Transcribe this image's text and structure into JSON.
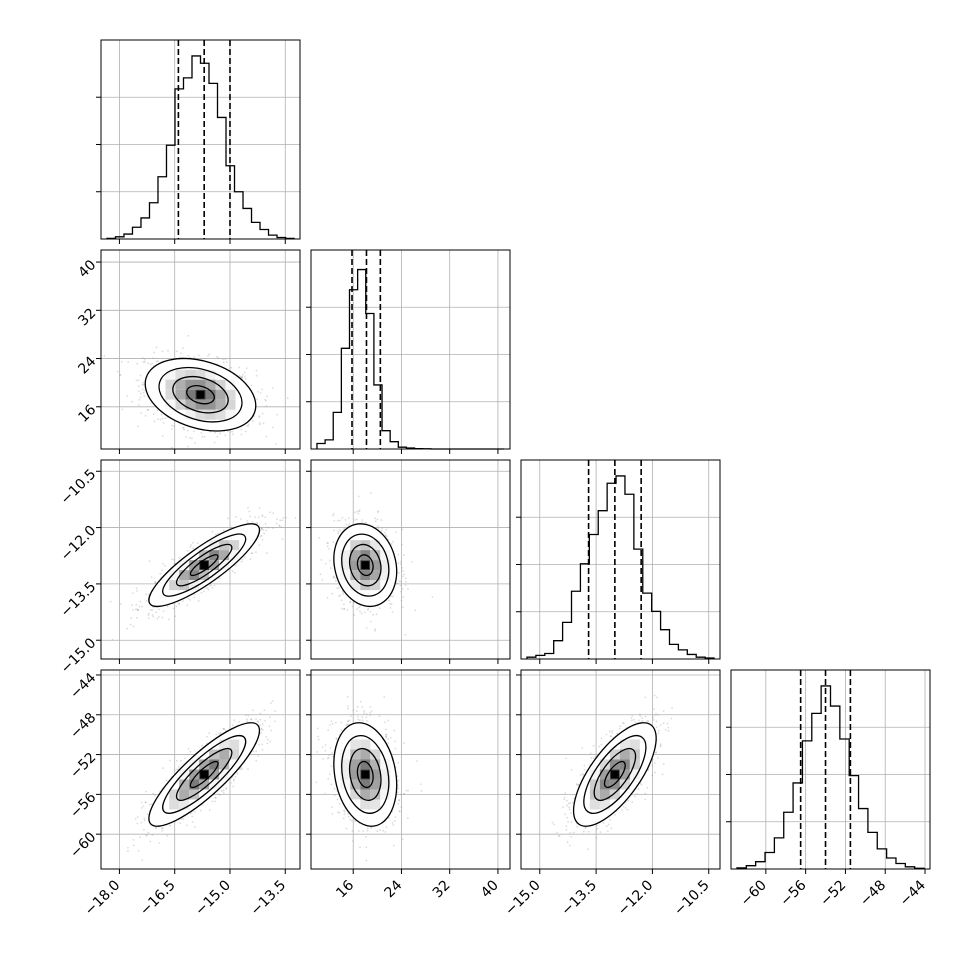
{
  "chart_data": {
    "type": "corner",
    "grid": true,
    "parameters": [
      {
        "range": [
          -18.5,
          -13.1
        ],
        "ticks": [
          -18.0,
          -16.5,
          -15.0,
          -13.5
        ],
        "tick_labels": [
          "−18.0",
          "−16.5",
          "−15.0",
          "−13.5"
        ],
        "quantiles": [
          -16.4,
          -15.7,
          -15.0
        ],
        "hist_bins": [
          0.003,
          0.012,
          0.027,
          0.064,
          0.115,
          0.198,
          0.34,
          0.512,
          0.82,
          0.88,
          1.0,
          0.96,
          0.85,
          0.664,
          0.4,
          0.258,
          0.167,
          0.091,
          0.052,
          0.021,
          0.008,
          0.003
        ]
      },
      {
        "range": [
          9.0,
          42.0
        ],
        "ticks": [
          16,
          24,
          32,
          40
        ],
        "tick_labels": [
          "16",
          "24",
          "32",
          "40"
        ],
        "quantiles": [
          15.8,
          18.2,
          20.5
        ],
        "hist_bins": [
          0.03,
          0.05,
          0.2,
          0.55,
          0.87,
          0.98,
          0.74,
          0.35,
          0.1,
          0.04,
          0.01,
          0.005,
          0.002,
          0.001,
          0.0,
          0.0,
          0.0,
          0.0,
          0.0,
          0.0,
          0.0,
          0.0,
          0.0
        ]
      },
      {
        "range": [
          -15.5,
          -10.2
        ],
        "ticks": [
          -15.0,
          -13.5,
          -12.0,
          -10.5
        ],
        "tick_labels": [
          "−15.0",
          "−13.5",
          "−12.0",
          "−10.5"
        ],
        "quantiles": [
          -13.7,
          -13.0,
          -12.3
        ],
        "hist_bins": [
          0.01,
          0.02,
          0.03,
          0.1,
          0.2,
          0.37,
          0.52,
          0.68,
          0.81,
          0.96,
          1.0,
          0.9,
          0.6,
          0.36,
          0.26,
          0.16,
          0.08,
          0.05,
          0.025,
          0.01,
          0.005
        ]
      },
      {
        "range": [
          -63.5,
          -43.5
        ],
        "ticks": [
          -60,
          -56,
          -52,
          -48,
          -44
        ],
        "tick_labels": [
          "−60",
          "−56",
          "−52",
          "−48",
          "−44"
        ],
        "quantiles": [
          -56.5,
          -54.0,
          -51.5
        ],
        "hist_bins": [
          0.006,
          0.018,
          0.04,
          0.09,
          0.17,
          0.31,
          0.47,
          0.7,
          0.85,
          1.0,
          0.89,
          0.71,
          0.51,
          0.33,
          0.2,
          0.11,
          0.06,
          0.03,
          0.012,
          0.004
        ]
      }
    ],
    "pairs": [
      {
        "row": 1,
        "col": 0,
        "mean": [
          -15.8,
          18.0
        ],
        "sd": [
          0.75,
          3.0
        ],
        "corr": -0.3
      },
      {
        "row": 2,
        "col": 0,
        "mean": [
          -15.7,
          -13.0
        ],
        "sd": [
          0.75,
          0.55
        ],
        "corr": 0.85
      },
      {
        "row": 2,
        "col": 1,
        "mean": [
          18.0,
          -13.0
        ],
        "sd": [
          2.6,
          0.55
        ],
        "corr": -0.15
      },
      {
        "row": 3,
        "col": 0,
        "mean": [
          -15.7,
          -54.0
        ],
        "sd": [
          0.75,
          2.6
        ],
        "corr": 0.85
      },
      {
        "row": 3,
        "col": 1,
        "mean": [
          18.0,
          -54.0
        ],
        "sd": [
          2.6,
          2.6
        ],
        "corr": -0.2
      },
      {
        "row": 3,
        "col": 2,
        "mean": [
          -13.0,
          -54.0
        ],
        "sd": [
          0.55,
          2.6
        ],
        "corr": 0.7
      }
    ],
    "contour_levels_sigma": [
      0.5,
      1.0,
      1.5,
      2.0
    ],
    "colors": {
      "line": "#000000",
      "points": "#9a9a9a",
      "grid": "#b0b0b0"
    }
  }
}
